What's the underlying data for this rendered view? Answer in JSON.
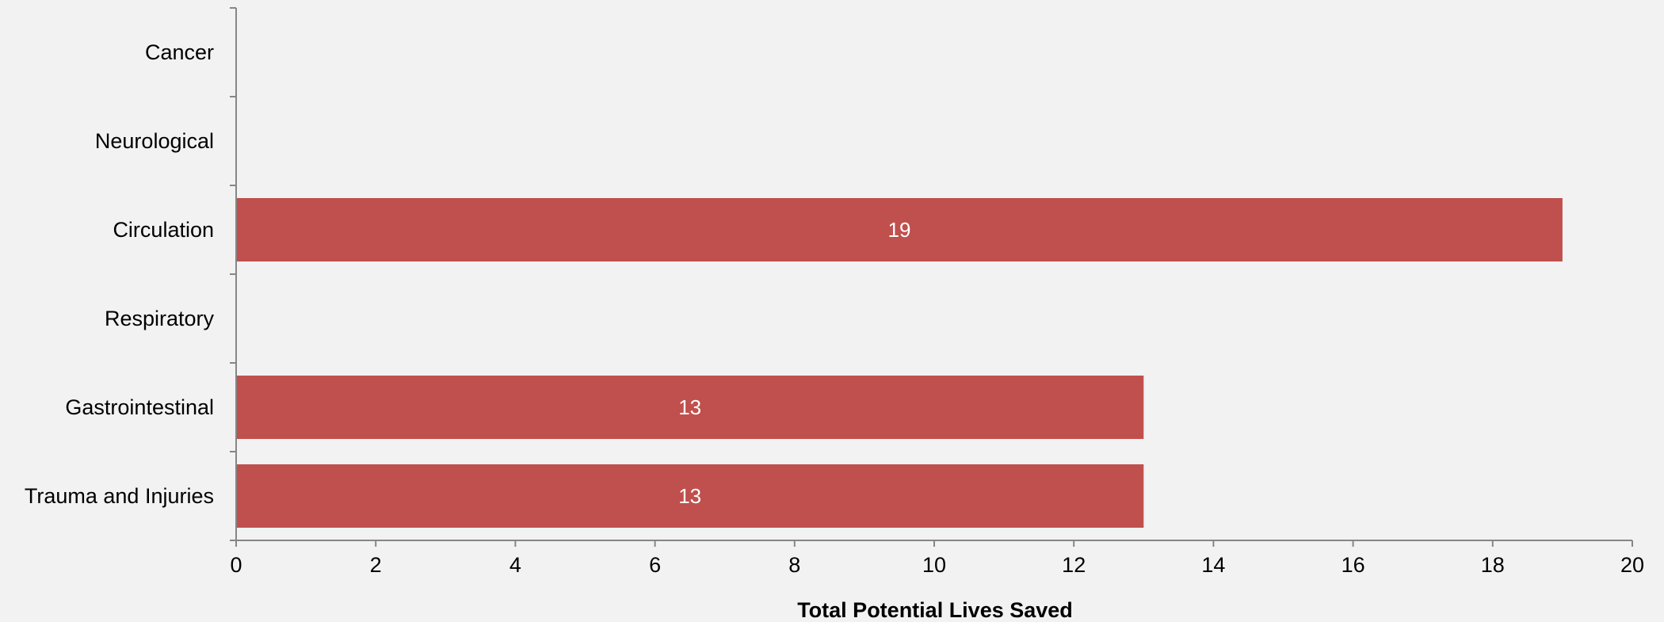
{
  "chart_data": {
    "type": "bar",
    "orientation": "horizontal",
    "categories": [
      "Cancer",
      "Neurological",
      "Circulation",
      "Respiratory",
      "Gastrointestinal",
      "Trauma and Injuries"
    ],
    "values": [
      0,
      0,
      19,
      0,
      13,
      13
    ],
    "data_labels": [
      "",
      "",
      "19",
      "",
      "13",
      "13"
    ],
    "xlabel": "Total Potential Lives Saved",
    "ylabel": "",
    "xlim": [
      0,
      20
    ],
    "x_ticks": [
      0,
      2,
      4,
      6,
      8,
      10,
      12,
      14,
      16,
      18,
      20
    ],
    "x_tick_labels": [
      "0",
      "2",
      "4",
      "6",
      "8",
      "10",
      "12",
      "14",
      "16",
      "18",
      "20"
    ],
    "grid": false,
    "legend": "none",
    "colors": {
      "bar": "#c0504d",
      "background": "#f2f2f2",
      "axis": "#868686",
      "data_label": "#ffffff"
    }
  }
}
